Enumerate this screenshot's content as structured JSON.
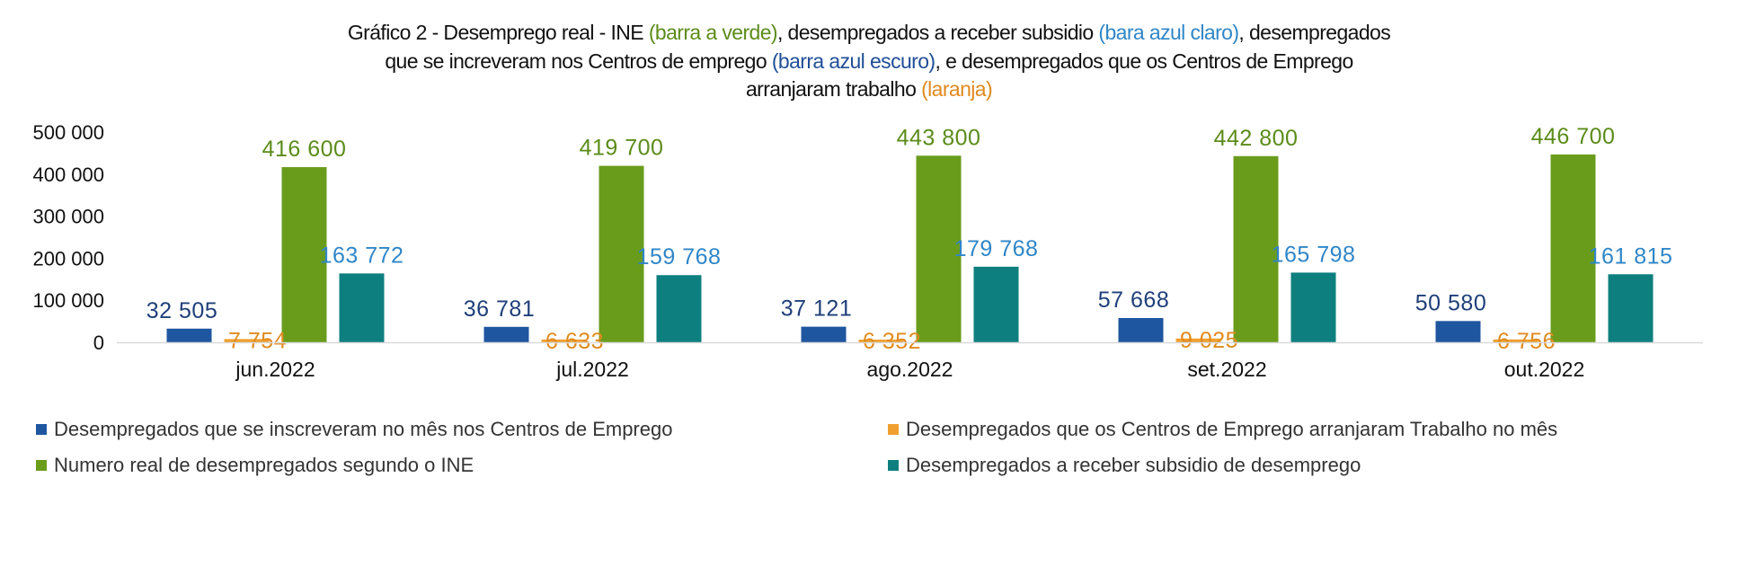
{
  "chart_data": {
    "type": "bar",
    "title_parts": [
      [
        {
          "text": "Gráfico 2 - Desemprego real - INE ",
          "color": "#111111"
        },
        {
          "text": "(barra a verde)",
          "color": "#5b8c1a"
        },
        {
          "text": ", desempregados a receber subsidio ",
          "color": "#111111"
        },
        {
          "text": "(bara azul claro)",
          "color": "#2f86c8"
        },
        {
          "text": ", desempregados",
          "color": "#111111"
        }
      ],
      [
        {
          "text": "que se increveram nos Centros de emprego ",
          "color": "#111111"
        },
        {
          "text": "(barra azul escuro)",
          "color": "#1f4e96"
        },
        {
          "text": ", e desempregados  que os Centros de Emprego",
          "color": "#111111"
        }
      ],
      [
        {
          "text": "arranjaram trabalho ",
          "color": "#111111"
        },
        {
          "text": "(laranja)",
          "color": "#e0891c"
        }
      ]
    ],
    "categories": [
      "jun.2022",
      "jul.2022",
      "ago.2022",
      "set.2022",
      "out.2022"
    ],
    "ylim": [
      0,
      500000
    ],
    "yticks": [
      0,
      100000,
      200000,
      300000,
      400000,
      500000
    ],
    "ytick_labels": [
      "0",
      "100 000",
      "200 000",
      "300 000",
      "400 000",
      "500 000"
    ],
    "grid": false,
    "legend_position": "bottom",
    "series": [
      {
        "name": "Desempregados que se inscreveram no mês nos Centros de Emprego",
        "color": "#1f56a0",
        "label_color": "#1f3f7a",
        "values": [
          32505,
          36781,
          37121,
          57668,
          50580
        ],
        "labels": [
          "32 505",
          "36 781",
          "37 121",
          "57 668",
          "50 580"
        ]
      },
      {
        "name": "Desempregados que os Centros de Emprego arranjaram Trabalho no mês",
        "color": "#f0a030",
        "label_color": "#e08a1e",
        "values": [
          7754,
          6633,
          6352,
          9025,
          6756
        ],
        "labels": [
          "7 754",
          "6 633",
          "6 352",
          "9 025",
          "6 756"
        ]
      },
      {
        "name": "Numero real de desempregados segundo o INE",
        "color": "#6a9c1c",
        "label_color": "#5b8c1a",
        "values": [
          416600,
          419700,
          443800,
          442800,
          446700
        ],
        "labels": [
          "416 600",
          "419 700",
          "443 800",
          "442 800",
          "446 700"
        ]
      },
      {
        "name": "Desempregados a receber subsidio de desemprego",
        "color": "#0e7f7f",
        "label_color": "#2f86c8",
        "values": [
          163772,
          159768,
          179768,
          165798,
          161815
        ],
        "labels": [
          "163 772",
          "159 768",
          "179 768",
          "165 798",
          "161 815"
        ]
      }
    ]
  }
}
